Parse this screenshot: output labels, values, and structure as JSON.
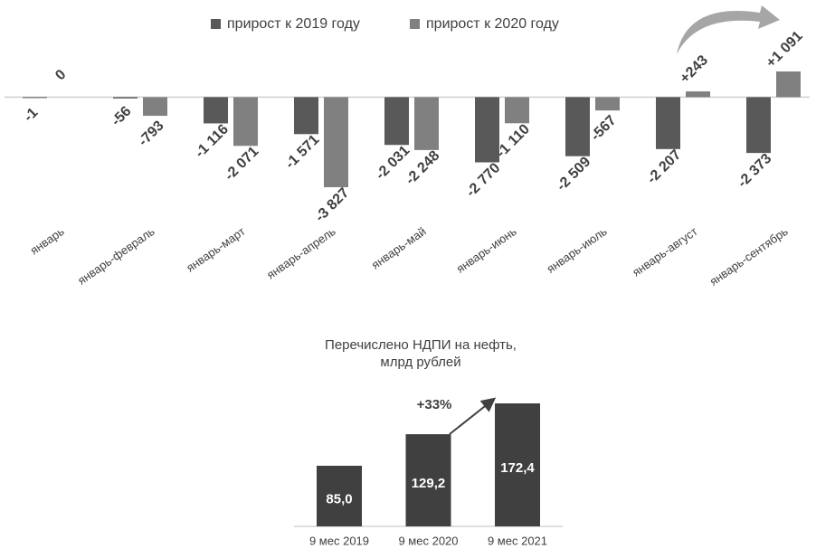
{
  "chart_data": [
    {
      "type": "bar",
      "categories": [
        "январь",
        "январь-февраль",
        "январь-март",
        "январь-апрель",
        "январь-май",
        "январь-июнь",
        "январь-июль",
        "январь-август",
        "январь-сентябрь"
      ],
      "series": [
        {
          "name": "прирост к 2019 году",
          "color": "#595959",
          "values": [
            -1,
            -56,
            -1116,
            -1571,
            -2031,
            -2770,
            -2509,
            -2207,
            -2373
          ],
          "value_labels": [
            "-1",
            "-56",
            "-1 116",
            "-1 571",
            "-2 031",
            "-2 770",
            "-2 509",
            "-2 207",
            "-2 373"
          ]
        },
        {
          "name": "прирост к 2020 году",
          "color": "#808080",
          "values": [
            0,
            -793,
            -2071,
            -3827,
            -2248,
            -1110,
            -567,
            243,
            1091
          ],
          "value_labels": [
            "0",
            "-793",
            "-2 071",
            "-3 827",
            "-2 248",
            "-1 110",
            "-567",
            "+243",
            "+1 091"
          ]
        }
      ],
      "legend": "top"
    },
    {
      "type": "bar",
      "title": "Перечислено НДПИ на нефть, млрд рублей",
      "categories": [
        "9 мес 2019",
        "9 мес 2020",
        "9 мес 2021"
      ],
      "values": [
        85.0,
        129.2,
        172.4
      ],
      "value_labels": [
        "85,0",
        "129,2",
        "172,4"
      ],
      "color": "#404040",
      "annotation": "+33%"
    }
  ]
}
